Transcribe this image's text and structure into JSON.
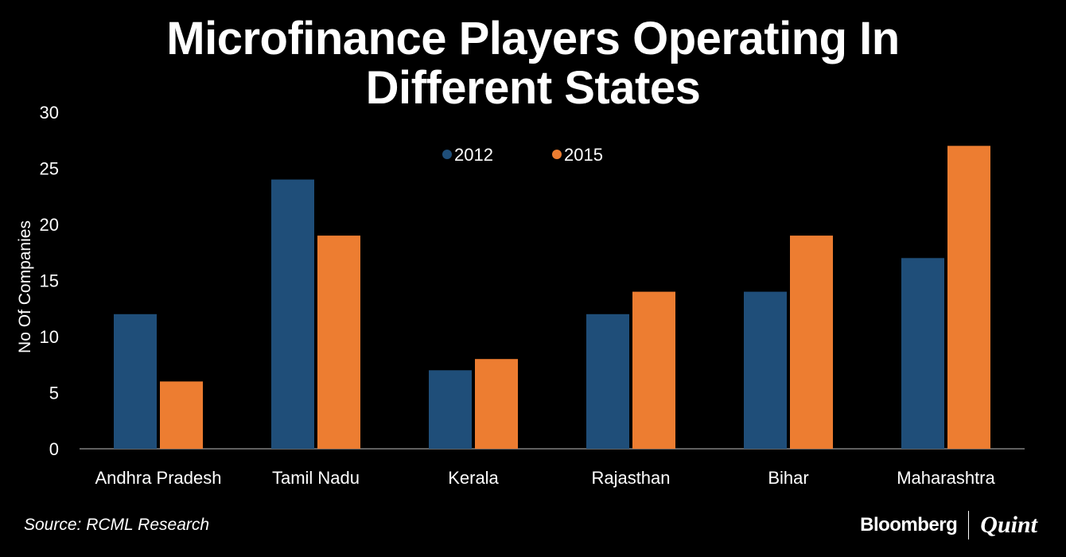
{
  "chart_data": {
    "type": "bar",
    "title_lines": [
      "Microfinance Players Operating In",
      "Different States"
    ],
    "xlabel": "",
    "ylabel": "No Of Companies",
    "categories": [
      "Andhra Pradesh",
      "Tamil Nadu",
      "Kerala",
      "Rajasthan",
      "Bihar",
      "Maharashtra"
    ],
    "series": [
      {
        "name": "2012",
        "values": [
          12,
          24,
          7,
          12,
          14,
          17
        ],
        "color": "#1f4e79"
      },
      {
        "name": "2015",
        "values": [
          6,
          19,
          8,
          14,
          19,
          27
        ],
        "color": "#ed7d31"
      }
    ],
    "ylim": [
      0,
      30
    ],
    "yticks": [
      0,
      5,
      10,
      15,
      20,
      25,
      30
    ],
    "legend_position": "top-center",
    "grid": false
  },
  "footer": {
    "source": "Source: RCML Research",
    "brand_primary": "Bloomberg",
    "brand_secondary": "Quint"
  }
}
